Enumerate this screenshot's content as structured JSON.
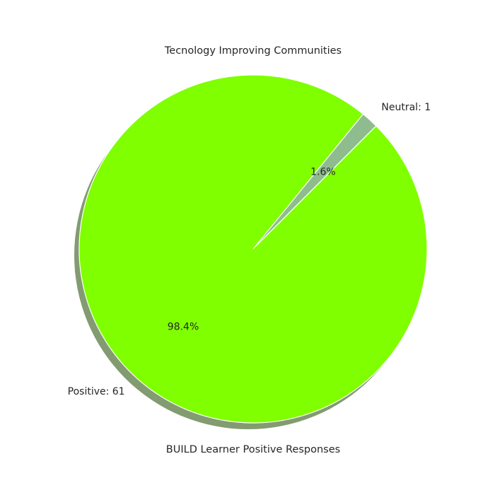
{
  "chart_data": {
    "type": "pie",
    "title": "Tecnology Improving Communities",
    "xlabel": "BUILD Learner Positive Responses",
    "slices": [
      {
        "label": "Neutral: 1",
        "value": 1,
        "percent_label": "1.6%",
        "color": "#8fbc8f"
      },
      {
        "label": "Positive: 61",
        "value": 61,
        "percent_label": "98.4%",
        "color": "#7fff00"
      }
    ],
    "start_angle_deg": 45,
    "direction": "counterclockwise",
    "shadow": true,
    "shadow_color": "#5a7a40",
    "edge_color": "#ffffff"
  }
}
